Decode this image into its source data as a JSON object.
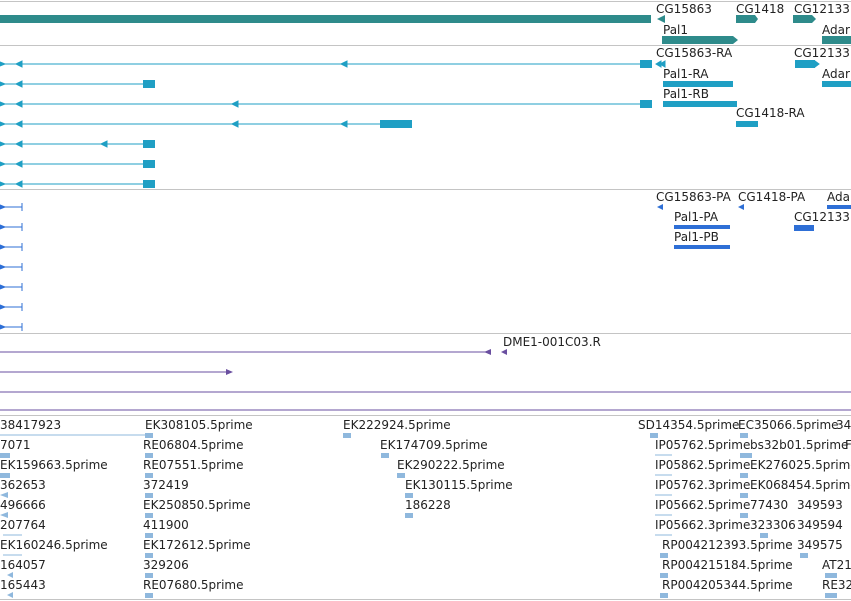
{
  "colors": {
    "gene": "#2e8b8b",
    "transcript": "#1f9fc4",
    "protein": "#2e6fd6",
    "cdna": "#6a4fa0",
    "est": "#8fb8dd",
    "divider": "#c4c4c4"
  },
  "gene_track": {
    "labels": [
      "CG15863",
      "CG1418",
      "CG12133",
      "Pal1",
      "Adar"
    ]
  },
  "transcript_track": {
    "labels": [
      "CG15863-RA",
      "CG12133",
      "Pal1-RA",
      "Adar",
      "Pal1-RB",
      "CG1418-RA"
    ]
  },
  "protein_track": {
    "labels": [
      "CG15863-PA",
      "CG1418-PA",
      "Ada",
      "Pal1-PA",
      "CG12133",
      "Pal1-PB"
    ]
  },
  "cdna_track": {
    "labels": [
      "DME1-001C03.R"
    ]
  },
  "est_track": {
    "col1": [
      "38417923",
      "7071",
      "EK159663.5prime",
      "362653",
      "496666",
      "207764",
      "EK160246.5prime",
      "164057",
      "165443"
    ],
    "col2": [
      "EK308105.5prime",
      "RE06804.5prime",
      "RE07551.5prime",
      "372419",
      "EK250850.5prime",
      "411900",
      "EK172612.5prime",
      "329206",
      "RE07680.5prime"
    ],
    "col3": [
      "EK222924.5prime",
      "EK174709.5prime",
      "EK290222.5prime",
      "EK130115.5prime",
      "186228"
    ],
    "col4": [
      "SD14354.5prime",
      "IP05762.5prime",
      "IP05862.5prime",
      "IP05762.3prime",
      "IP05662.5prime",
      "IP05662.3prime",
      "RP004212393.5prime",
      "RP004215184.5prime",
      "RP004205344.5prime"
    ],
    "col5": [
      "EC35066.5prime",
      "bs32b01.5prime",
      "EK276025.5prime",
      "EK068454.5prime",
      "77430",
      "323306",
      "349593",
      "349594",
      "349575"
    ],
    "col6": [
      "34",
      "F",
      "AT21",
      "RE32"
    ]
  }
}
